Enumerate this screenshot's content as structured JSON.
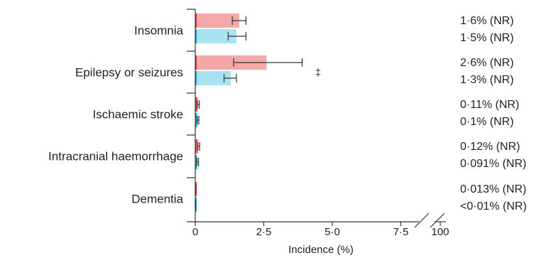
{
  "chart_data": {
    "type": "bar",
    "orientation": "horizontal",
    "xlabel": "Incidence (%)",
    "x_ticks": [
      "0",
      "2·5",
      "5·0",
      "7·5",
      "100"
    ],
    "xlim": [
      0,
      7.5
    ],
    "axis_break": "between 7·5 and 100",
    "colors": {
      "series_1": "#f4a9a8",
      "series_1_edge": "#d23a3a",
      "series_2": "#a9e3f2",
      "series_2_edge": "#19a9c9"
    },
    "categories": [
      "Insomnia",
      "Epilepsy or seizures",
      "Ischaemic stroke",
      "Intracranial haemorrhage",
      "Dementia"
    ],
    "series": [
      {
        "values": [
          1.6,
          2.6,
          0.11,
          0.12,
          0.013
        ],
        "err_low": [
          1.35,
          1.4,
          0.08,
          0.09,
          0.008
        ],
        "err_high": [
          1.85,
          3.9,
          0.15,
          0.16,
          0.02
        ],
        "labels": [
          "1·6% (NR)",
          "2·6% (NR)",
          "0·11% (NR)",
          "0·12% (NR)",
          "0·013% (NR)"
        ]
      },
      {
        "values": [
          1.5,
          1.3,
          0.1,
          0.091,
          0.008
        ],
        "err_low": [
          1.2,
          1.05,
          0.07,
          0.06,
          0.004
        ],
        "err_high": [
          1.85,
          1.5,
          0.13,
          0.12,
          0.012
        ],
        "labels": [
          "1·5% (NR)",
          "1·3% (NR)",
          "0·1% (NR)",
          "0·091% (NR)",
          "<0·01% (NR)"
        ]
      }
    ],
    "annotations": [
      {
        "category": "Epilepsy or seizures",
        "text": "‡"
      }
    ]
  }
}
